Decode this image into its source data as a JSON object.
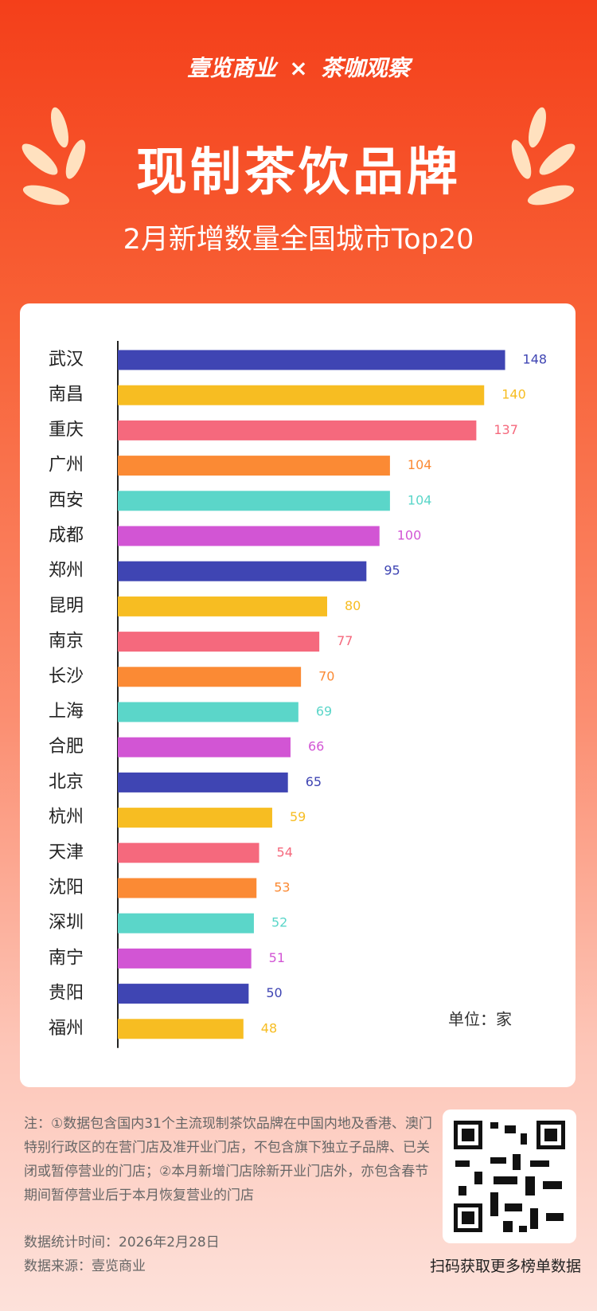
{
  "header": {
    "brand_left": "壹览商业",
    "cross": "×",
    "brand_right": "茶咖观察",
    "title": "现制茶饮品牌",
    "subtitle": "2月新增数量全国城市Top20"
  },
  "chart_data": {
    "type": "hbar",
    "unit": "单位：家",
    "categories": [
      "武汉",
      "南昌",
      "重庆",
      "广州",
      "西安",
      "成都",
      "郑州",
      "昆明",
      "南京",
      "长沙",
      "上海",
      "合肥",
      "北京",
      "杭州",
      "天津",
      "沈阳",
      "深圳",
      "南宁",
      "贵阳",
      "福州"
    ],
    "values": [
      148,
      140,
      137,
      104,
      104,
      100,
      95,
      80,
      77,
      70,
      69,
      66,
      65,
      59,
      54,
      53,
      52,
      51,
      50,
      48
    ],
    "colors": [
      "#3f45b3",
      "#f7bd22",
      "#f5697d",
      "#fb8a34",
      "#5bd6c9",
      "#d255d4",
      "#3f45b3",
      "#f7bd22",
      "#f5697d",
      "#fb8a34",
      "#5bd6c9",
      "#d255d4",
      "#3f45b3",
      "#f7bd22",
      "#f5697d",
      "#fb8a34",
      "#5bd6c9",
      "#d255d4",
      "#3f45b3",
      "#f7bd22"
    ],
    "xlim": [
      0,
      160
    ]
  },
  "footer": {
    "note": "注：①数据包含国内31个主流现制茶饮品牌在中国内地及香港、澳门特别行政区的在营门店及准开业门店，不包含旗下独立子品牌、已关闭或暂停营业的门店；②本月新增门店除新开业门店外，亦包含春节期间暂停营业后于本月恢复营业的门店",
    "date": "数据统计时间：2026年2月28日",
    "source": "数据来源：壹览商业",
    "qr_caption": "扫码获取更多榜单数据"
  }
}
